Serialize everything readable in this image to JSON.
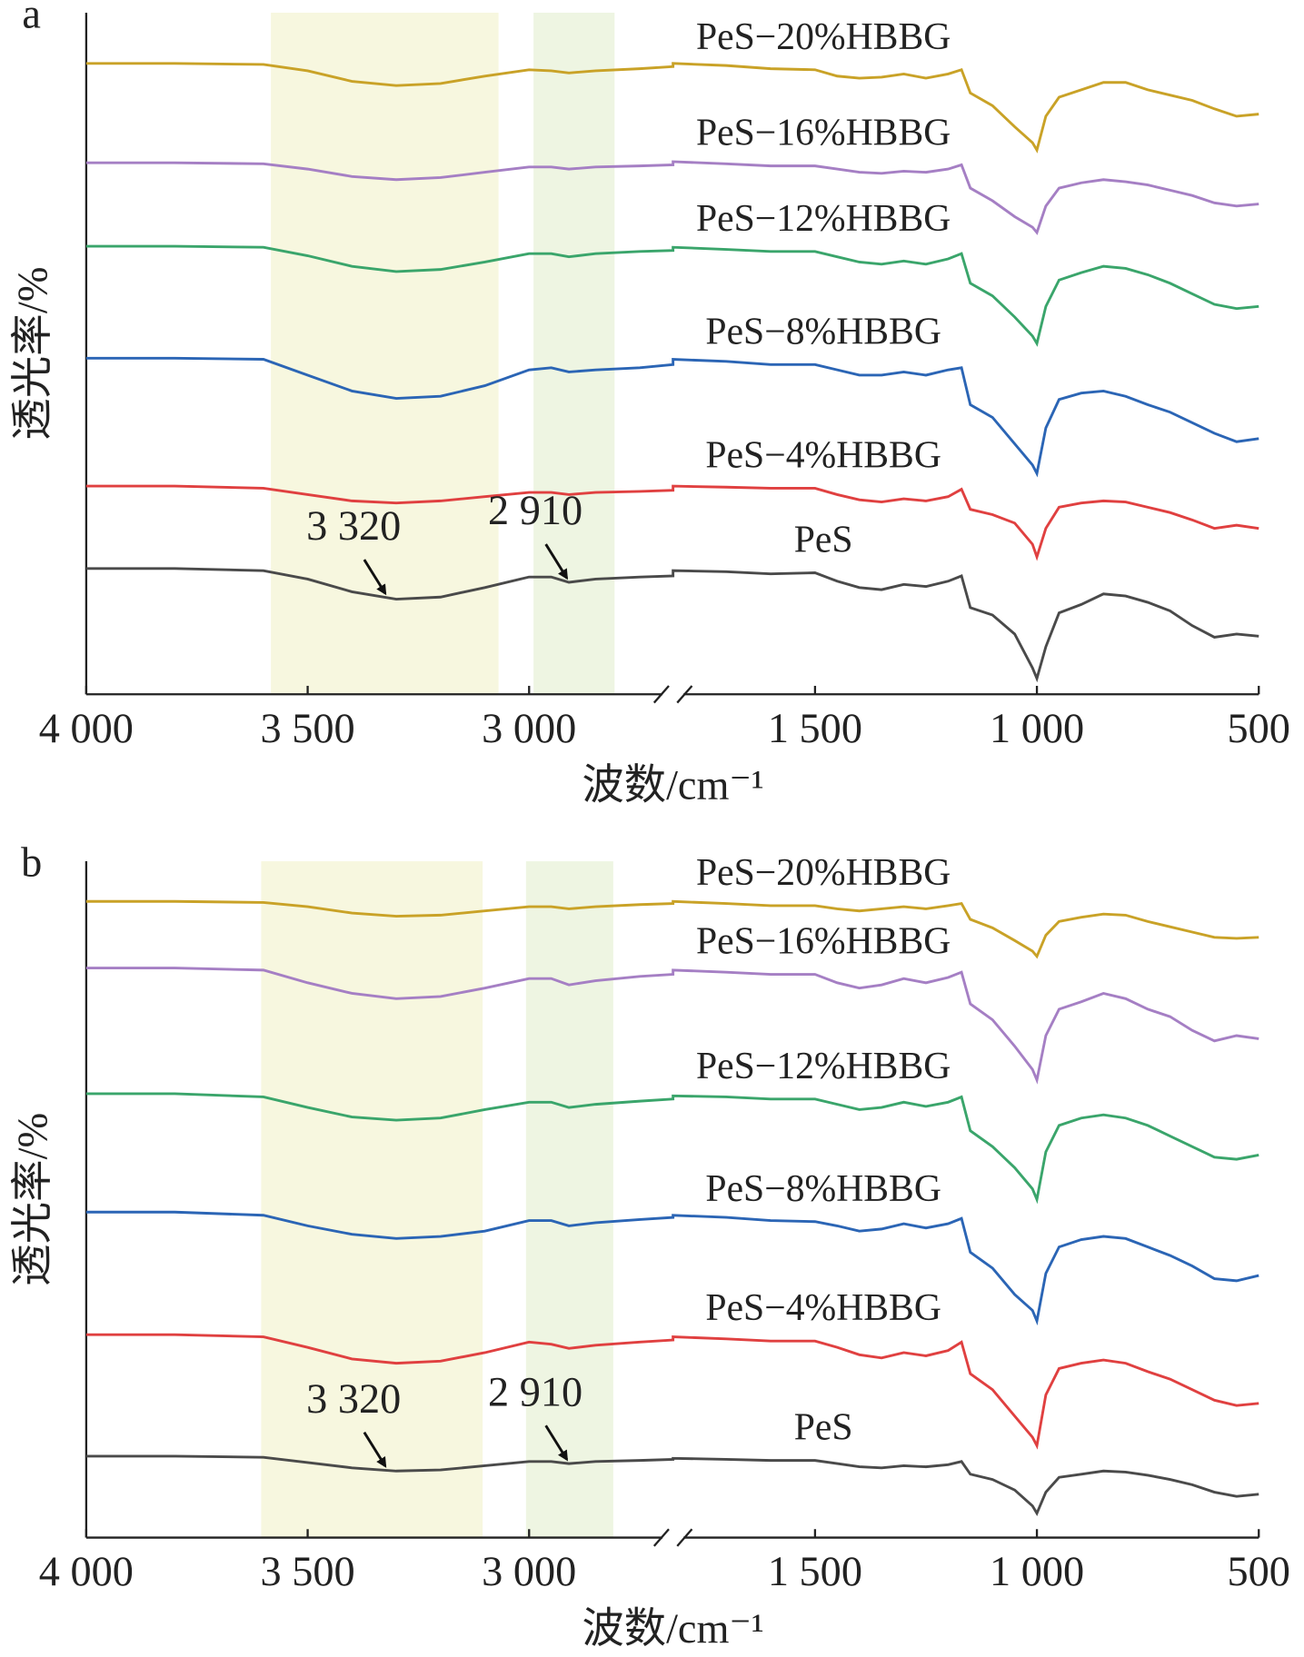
{
  "chart_data": [
    {
      "type": "line",
      "panel_label": "a",
      "xlabel": "波数/cm⁻¹",
      "ylabel": "透光率/%",
      "xlim": [
        4000,
        500
      ],
      "xbreak": [
        2675,
        1820
      ],
      "ylim": [
        0,
        645
      ],
      "xticks": [
        {
          "value": 4000,
          "label": "4 000"
        },
        {
          "value": 3500,
          "label": "3 500"
        },
        {
          "value": 3000,
          "label": "3 000"
        },
        {
          "value": 1500,
          "label": "1 500"
        },
        {
          "value": 1000,
          "label": "1 000"
        },
        500
      ],
      "bands": [
        {
          "range": [
            3583,
            3069
          ],
          "color": "#f7f7df"
        },
        {
          "range": [
            2990,
            2807
          ],
          "color": "#eef5e2"
        }
      ],
      "x": [
        4000,
        3800,
        3600,
        3500,
        3400,
        3300,
        3200,
        3100,
        3000,
        2950,
        2910,
        2850,
        2750,
        2675,
        1820,
        1700,
        1600,
        1500,
        1450,
        1400,
        1350,
        1300,
        1250,
        1200,
        1170,
        1150,
        1100,
        1050,
        1010,
        1000,
        980,
        950,
        900,
        850,
        800,
        750,
        700,
        650,
        600,
        550,
        500
      ],
      "series": [
        {
          "name": "PeS",
          "color": "#4a4a4a",
          "values": [
            119,
            119,
            117,
            109,
            97,
            90,
            92,
            101,
            111,
            111,
            106,
            109,
            111,
            112,
            117,
            116,
            114,
            115,
            107,
            101,
            99,
            104,
            102,
            107,
            112,
            82,
            75,
            57,
            25,
            15,
            45,
            77,
            85,
            95,
            93,
            87,
            79,
            65,
            54,
            57,
            55
          ]
        },
        {
          "name": "PeS−4%HBBG",
          "color": "#e04040",
          "values": [
            197,
            197,
            195,
            189,
            183,
            181,
            183,
            187,
            191,
            191,
            189,
            191,
            192,
            193,
            197,
            196,
            195,
            195,
            189,
            184,
            182,
            185,
            183,
            187,
            194,
            175,
            170,
            162,
            142,
            130,
            157,
            177,
            181,
            183,
            182,
            177,
            172,
            165,
            157,
            160,
            157
          ]
        },
        {
          "name": "PeS−8%HBBG",
          "color": "#2b65b5",
          "values": [
            318,
            318,
            317,
            302,
            287,
            280,
            282,
            292,
            307,
            309,
            305,
            307,
            309,
            312,
            317,
            315,
            312,
            312,
            307,
            302,
            302,
            305,
            302,
            307,
            309,
            274,
            262,
            237,
            217,
            209,
            252,
            279,
            285,
            287,
            282,
            274,
            267,
            257,
            247,
            239,
            242
          ]
        },
        {
          "name": "PeS−12%HBBG",
          "color": "#3aa56b",
          "values": [
            424,
            424,
            423,
            415,
            405,
            400,
            402,
            409,
            417,
            417,
            414,
            417,
            419,
            420,
            423,
            421,
            419,
            419,
            414,
            409,
            407,
            410,
            407,
            412,
            417,
            389,
            377,
            357,
            339,
            332,
            367,
            392,
            399,
            405,
            403,
            397,
            389,
            379,
            369,
            365,
            367
          ]
        },
        {
          "name": "PeS−16%HBBG",
          "color": "#a57fc4",
          "values": [
            503,
            503,
            502,
            497,
            490,
            487,
            489,
            494,
            499,
            499,
            497,
            499,
            500,
            501,
            504,
            502,
            500,
            500,
            497,
            494,
            493,
            495,
            494,
            497,
            501,
            479,
            467,
            452,
            442,
            437,
            462,
            479,
            484,
            487,
            485,
            482,
            477,
            472,
            465,
            462,
            464
          ]
        },
        {
          "name": "PeS−20%HBBG",
          "color": "#c9a227",
          "values": [
            597,
            597,
            596,
            590,
            580,
            576,
            578,
            585,
            591,
            590,
            588,
            590,
            592,
            594,
            597,
            595,
            592,
            591,
            585,
            583,
            584,
            587,
            583,
            587,
            591,
            569,
            557,
            537,
            522,
            515,
            547,
            565,
            572,
            579,
            579,
            572,
            567,
            562,
            554,
            547,
            549
          ]
        }
      ],
      "annotations": [
        {
          "x": 3320,
          "label": "3 320"
        },
        {
          "x": 2910,
          "label": "2 910"
        }
      ]
    },
    {
      "type": "line",
      "panel_label": "b",
      "xlabel": "波数/cm⁻¹",
      "ylabel": "透光率/%",
      "xlim": [
        4000,
        500
      ],
      "xbreak": [
        2675,
        1820
      ],
      "ylim": [
        0,
        640
      ],
      "xticks": [
        {
          "value": 4000,
          "label": "4 000"
        },
        {
          "value": 3500,
          "label": "3 500"
        },
        {
          "value": 3000,
          "label": "3 000"
        },
        {
          "value": 1500,
          "label": "1 500"
        },
        {
          "value": 1000,
          "label": "1 000"
        },
        500
      ],
      "bands": [
        {
          "range": [
            3605,
            3105
          ],
          "color": "#f7f7df"
        },
        {
          "range": [
            3007,
            2810
          ],
          "color": "#eef5e2"
        }
      ],
      "x": [
        4000,
        3800,
        3600,
        3500,
        3400,
        3300,
        3200,
        3100,
        3000,
        2950,
        2910,
        2850,
        2750,
        2675,
        1820,
        1700,
        1600,
        1500,
        1450,
        1400,
        1350,
        1300,
        1250,
        1200,
        1170,
        1150,
        1100,
        1050,
        1010,
        1000,
        980,
        950,
        900,
        850,
        800,
        750,
        700,
        650,
        600,
        550,
        500
      ],
      "series": [
        {
          "name": "PeS",
          "color": "#4a4a4a",
          "values": [
            77,
            77,
            76,
            71,
            66,
            63,
            64,
            68,
            72,
            72,
            70,
            72,
            73,
            74,
            75,
            74,
            73,
            73,
            70,
            67,
            66,
            68,
            67,
            69,
            72,
            60,
            55,
            45,
            30,
            23,
            43,
            57,
            60,
            63,
            62,
            59,
            55,
            50,
            43,
            39,
            41
          ]
        },
        {
          "name": "PeS−4%HBBG",
          "color": "#e04040",
          "values": [
            192,
            192,
            190,
            180,
            169,
            165,
            167,
            175,
            185,
            183,
            179,
            182,
            185,
            187,
            190,
            188,
            186,
            186,
            180,
            173,
            170,
            175,
            172,
            177,
            185,
            155,
            140,
            115,
            95,
            87,
            135,
            160,
            165,
            168,
            165,
            157,
            150,
            140,
            130,
            125,
            127
          ]
        },
        {
          "name": "PeS−8%HBBG",
          "color": "#2b65b5",
          "values": [
            308,
            308,
            305,
            295,
            287,
            283,
            285,
            290,
            300,
            300,
            295,
            298,
            301,
            303,
            305,
            303,
            300,
            299,
            295,
            290,
            292,
            297,
            293,
            297,
            302,
            270,
            255,
            230,
            215,
            205,
            250,
            275,
            282,
            285,
            283,
            275,
            267,
            257,
            245,
            243,
            248
          ]
        },
        {
          "name": "PeS−12%HBBG",
          "color": "#3aa56b",
          "values": [
            420,
            420,
            417,
            407,
            398,
            395,
            397,
            405,
            412,
            412,
            407,
            410,
            413,
            415,
            418,
            417,
            415,
            415,
            410,
            405,
            407,
            412,
            408,
            412,
            417,
            385,
            370,
            350,
            330,
            320,
            365,
            390,
            397,
            400,
            397,
            390,
            380,
            370,
            360,
            358,
            362
          ]
        },
        {
          "name": "PeS−16%HBBG",
          "color": "#a57fc4",
          "values": [
            539,
            539,
            537,
            525,
            515,
            510,
            512,
            520,
            529,
            529,
            523,
            527,
            531,
            533,
            537,
            535,
            533,
            533,
            525,
            520,
            523,
            529,
            525,
            530,
            535,
            505,
            490,
            465,
            443,
            433,
            475,
            500,
            507,
            515,
            510,
            500,
            493,
            480,
            470,
            475,
            472
          ]
        },
        {
          "name": "PeS−20%HBBG",
          "color": "#c9a227",
          "values": [
            602,
            602,
            601,
            597,
            591,
            588,
            589,
            593,
            597,
            597,
            595,
            597,
            599,
            600,
            602,
            600,
            598,
            598,
            595,
            593,
            595,
            597,
            595,
            598,
            600,
            585,
            577,
            565,
            555,
            550,
            570,
            583,
            587,
            590,
            589,
            583,
            578,
            573,
            568,
            567,
            568
          ]
        }
      ],
      "annotations": [
        {
          "x": 3320,
          "label": "3 320"
        },
        {
          "x": 2910,
          "label": "2 910"
        }
      ]
    }
  ]
}
